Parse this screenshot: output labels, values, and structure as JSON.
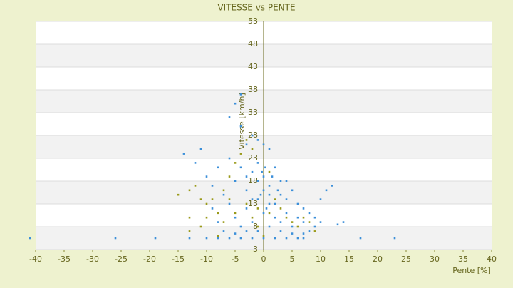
{
  "chart_data": {
    "type": "scatter",
    "title": "VITESSE vs PENTE",
    "x_label": "Pente [%]",
    "y_label": "Vitesse [km/h]",
    "xlim": [
      -40,
      40
    ],
    "xticks": [
      -40,
      -35,
      -30,
      -25,
      -20,
      -15,
      -10,
      -5,
      0,
      5,
      10,
      15,
      20,
      25,
      30,
      35,
      40
    ],
    "ylim": [
      3,
      53
    ],
    "yticks": [
      3,
      8,
      13,
      18,
      23,
      28,
      33,
      38,
      43,
      48,
      53
    ],
    "banded_grid": true,
    "series": [
      {
        "color": "#3b8fd9",
        "x": [
          -41,
          -26,
          -19,
          17,
          23,
          -13,
          -10,
          -8,
          -6,
          -4,
          -2,
          0,
          2,
          4,
          6,
          7,
          -4,
          -5,
          -6,
          -4,
          -2,
          -1,
          0,
          1,
          -3,
          -14,
          -12,
          -11,
          -10,
          -9,
          -8,
          -7,
          -6,
          -5,
          -4,
          -3,
          -2,
          -1,
          0,
          1,
          2,
          3,
          4,
          5,
          6,
          7,
          8,
          9,
          10,
          11,
          12,
          -9,
          -8,
          -7,
          -6,
          -5,
          -4,
          -3,
          -2,
          -1,
          0,
          1,
          2,
          3,
          4,
          5,
          6,
          7,
          8,
          9,
          10,
          14,
          13,
          -1,
          0,
          1,
          2,
          0.5,
          -0.5,
          1.5,
          3,
          2.5,
          4,
          -2,
          -3,
          -0.3,
          0.3,
          1,
          3,
          5,
          7,
          -5,
          -3,
          -1
        ],
        "values": [
          5.5,
          5.5,
          5.5,
          5.5,
          5.5,
          5.5,
          5.5,
          5.5,
          5.5,
          5.5,
          5.5,
          5.5,
          5.5,
          5.5,
          5.5,
          5.5,
          37,
          35,
          32,
          30,
          28,
          27,
          26,
          25,
          26,
          24,
          22,
          25,
          19,
          17,
          21,
          15,
          23,
          18,
          21,
          16,
          20,
          22,
          19,
          17,
          21,
          15,
          14,
          16,
          13,
          12,
          11,
          10,
          14,
          16,
          17,
          12,
          9,
          7,
          13,
          10,
          8,
          12,
          9,
          14,
          11,
          13,
          10,
          9,
          11,
          8,
          10,
          9,
          7,
          8,
          9,
          9,
          8.5,
          18,
          16,
          15,
          13,
          12,
          15,
          19,
          18,
          16,
          18,
          14,
          19,
          20,
          21,
          8,
          7,
          6.5,
          6.5,
          6.5,
          7,
          7
        ]
      },
      {
        "color": "#9a9a1a",
        "x": [
          -15,
          -13,
          -12,
          -11,
          -10,
          -9,
          -8,
          -7,
          -6,
          -5,
          -4,
          -3,
          -2,
          -1,
          0,
          1,
          2,
          3,
          4,
          5,
          6,
          7,
          8,
          9,
          -13,
          -11,
          -10,
          -7,
          -5,
          -3,
          -2,
          -1,
          -8,
          -6,
          1,
          -13
        ],
        "values": [
          15,
          16,
          17,
          14,
          13,
          14,
          11,
          16,
          19,
          22,
          24,
          13,
          10,
          8,
          6,
          11,
          14,
          12,
          10,
          9,
          8,
          10,
          9,
          7,
          7,
          8,
          10,
          9,
          11,
          27,
          25,
          12,
          6,
          14,
          20,
          10
        ]
      }
    ]
  }
}
